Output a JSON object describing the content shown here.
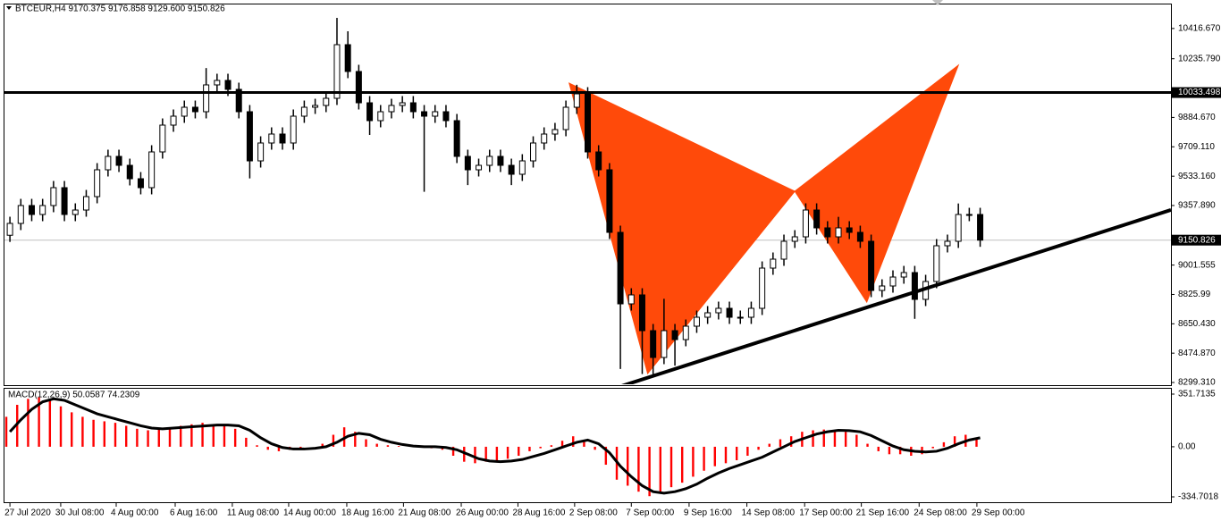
{
  "chart_data": [
    {
      "type": "candlestick",
      "title": "BTCEUR,H4  9170.375 9176.858 9129.600 9150.826",
      "xlim": [
        -0.5,
        106.5
      ],
      "ylim": [
        8288.7,
        10560.3
      ],
      "yticks": [
        {
          "value": 10416.67,
          "label": "10416.670"
        },
        {
          "value": 10235.79,
          "label": "10235.790"
        },
        {
          "value": 9884.67,
          "label": "9884.670"
        },
        {
          "value": 9709.11,
          "label": "9709.110"
        },
        {
          "value": 9533.16,
          "label": "9533.160"
        },
        {
          "value": 9357.89,
          "label": "9357.890"
        },
        9001.555,
        8825.99,
        {
          "value": 8650.43,
          "label": "8650.430"
        },
        {
          "value": 8474.87,
          "label": "8474.870"
        },
        {
          "value": 8299.31,
          "label": "8299.310"
        }
      ],
      "xticks": [
        {
          "value": 0,
          "label": "27 Jul 2020"
        },
        {
          "value": 4.66,
          "label": "30 Jul 08:00"
        },
        {
          "value": 9.75,
          "label": "4 Aug 00:00"
        },
        {
          "value": 15.16,
          "label": "6 Aug 16:00"
        },
        {
          "value": 20.4,
          "label": "11 Aug 08:00"
        },
        {
          "value": 25.57,
          "label": "14 Aug 00:00"
        },
        {
          "value": 30.9,
          "label": "18 Aug 16:00"
        },
        {
          "value": 36.1,
          "label": "21 Aug 08:00"
        },
        {
          "value": 41.4,
          "label": "26 Aug 00:00"
        },
        {
          "value": 46.6,
          "label": "28 Aug 16:00"
        },
        {
          "value": 51.8,
          "label": "2 Sep 08:00"
        },
        {
          "value": 57.0,
          "label": "7 Sep 00:00"
        },
        {
          "value": 62.3,
          "label": "9 Sep 16:00"
        },
        {
          "value": 67.6,
          "label": "14 Sep 08:00"
        },
        {
          "value": 72.9,
          "label": "17 Sep 00:00"
        },
        {
          "value": 78.1,
          "label": "21 Sep 16:00"
        },
        {
          "value": 83.4,
          "label": "24 Sep 08:00"
        },
        {
          "value": 88.7,
          "label": "29 Sep 00:00"
        }
      ],
      "candles": [
        [
          9180,
          9290.8,
          9140,
          9250.8
        ],
        [
          9250.8,
          9397.7,
          9210.8,
          9357.7
        ],
        [
          9357.7,
          9397.7,
          9264.2,
          9304.2
        ],
        [
          9304.2,
          9397.7,
          9264.2,
          9357.7
        ],
        [
          9357.7,
          9504.6,
          9317.7,
          9464.6
        ],
        [
          9464.6,
          9504.6,
          9264.2,
          9304.2
        ],
        [
          9304.2,
          9370.9,
          9264.2,
          9330.9
        ],
        [
          9330.9,
          9451.1,
          9290.9,
          9411.1
        ],
        [
          9411.1,
          9611.5,
          9371.1,
          9571.5
        ],
        [
          9571.5,
          9691.7,
          9531.5,
          9651.7
        ],
        [
          9651.7,
          9691.7,
          9558.2,
          9598.2
        ],
        [
          9598.2,
          9638.2,
          9478.0,
          9518.0
        ],
        [
          9518.0,
          9558.0,
          9424.6,
          9464.6
        ],
        [
          9464.6,
          9718.4,
          9424.6,
          9678.4
        ],
        [
          9678.4,
          9878.7,
          9638.4,
          9838.7
        ],
        [
          9838.7,
          9932.2,
          9798.7,
          9892.2
        ],
        [
          9892.2,
          9985.6,
          9852.2,
          9945.6
        ],
        [
          9945.6,
          9985.6,
          9878.9,
          9918.9
        ],
        [
          9918.9,
          10180,
          9878.9,
          10079.3
        ],
        [
          10079.3,
          10146,
          10039.3,
          10106.0
        ],
        [
          10106.0,
          10146,
          10012.6,
          10052.6
        ],
        [
          10052.6,
          10092.6,
          9878.9,
          9918.9
        ],
        [
          9918.9,
          9958.9,
          9520,
          9624.9
        ],
        [
          9624.9,
          9771.8,
          9584.9,
          9731.8
        ],
        [
          9731.8,
          9825.3,
          9691.8,
          9785.3
        ],
        [
          9785.3,
          9825.3,
          9691.8,
          9731.8
        ],
        [
          9731.8,
          9932.2,
          9691.8,
          9892.2
        ],
        [
          9892.2,
          9985.6,
          9852.2,
          9945.6
        ],
        [
          9945.6,
          9996.3,
          9905.6,
          9956.3
        ],
        [
          9956.3,
          10039.1,
          9916.3,
          9999.1
        ],
        [
          9999.1,
          10480,
          9959.1,
          10319.8
        ],
        [
          10319.8,
          10400,
          10119.5,
          10159.5
        ],
        [
          10159.5,
          10199.5,
          9932.3,
          9972.3
        ],
        [
          9972.3,
          10012.3,
          9780,
          9865.5
        ],
        [
          9865.5,
          9958.9,
          9825.5,
          9918.9
        ],
        [
          9918.9,
          9996.3,
          9878.9,
          9956.3
        ],
        [
          9956.3,
          10012.3,
          9916.3,
          9972.3
        ],
        [
          9972.3,
          10012.3,
          9878.9,
          9918.9
        ],
        [
          9918.9,
          9958.9,
          9440,
          9892.2
        ],
        [
          9892.2,
          9958.9,
          9852.2,
          9918.9
        ],
        [
          9918.9,
          9958.9,
          9825.5,
          9865.5
        ],
        [
          9865.5,
          9905.5,
          9611.7,
          9651.7
        ],
        [
          9651.7,
          9691.7,
          9480,
          9571.5
        ],
        [
          9571.5,
          9638.2,
          9531.5,
          9598.2
        ],
        [
          9598.2,
          9691.7,
          9558.2,
          9651.7
        ],
        [
          9651.7,
          9691.7,
          9558.2,
          9598.2
        ],
        [
          9598.2,
          9638.2,
          9480,
          9544.8
        ],
        [
          9544.8,
          9664.9,
          9504.8,
          9624.9
        ],
        [
          9624.9,
          9771.8,
          9584.9,
          9731.8
        ],
        [
          9731.8,
          9825.3,
          9691.8,
          9785.3
        ],
        [
          9785.3,
          9852.0,
          9745.3,
          9812.0
        ],
        [
          9812.0,
          9985.6,
          9772.0,
          9945.6
        ],
        [
          9945.6,
          10080,
          9905.6,
          10025.8
        ],
        [
          10025.8,
          10065.8,
          9638.4,
          9678.4
        ],
        [
          9678.4,
          9718.4,
          9531.5,
          9571.5
        ],
        [
          9571.5,
          9611.5,
          9157.3,
          9197.3
        ],
        [
          9197.3,
          9237.3,
          8380,
          8769.7
        ],
        [
          8769.7,
          8863.2,
          8729.7,
          8823.2
        ],
        [
          8823.2,
          8863.2,
          8350,
          8609.4
        ],
        [
          8609.4,
          8649.4,
          8330,
          8449.0
        ],
        [
          8449.0,
          8800,
          8409.0,
          8609.4
        ],
        [
          8609.4,
          8649.4,
          8400,
          8555.9
        ],
        [
          8555.9,
          8676.1,
          8515.9,
          8636.1
        ],
        [
          8636.1,
          8729.6,
          8596.1,
          8689.6
        ],
        [
          8689.6,
          8756.3,
          8649.6,
          8716.3
        ],
        [
          8716.3,
          8783.0,
          8676.3,
          8743.0
        ],
        [
          8743.0,
          8783.0,
          8649.6,
          8689.6
        ],
        [
          8689.6,
          8729.6,
          8649.6,
          8689.6
        ],
        [
          8689.6,
          8783.0,
          8649.6,
          8743.0
        ],
        [
          8743.0,
          9023.5,
          8703.0,
          8983.5
        ],
        [
          8983.5,
          9077.0,
          8943.5,
          9037.0
        ],
        [
          9037.0,
          9183.9,
          8997.0,
          9143.9
        ],
        [
          9143.9,
          9210.6,
          9103.9,
          9170.6
        ],
        [
          9170.6,
          9370.9,
          9130.6,
          9330.9
        ],
        [
          9330.9,
          9370.9,
          9184.1,
          9224.1
        ],
        [
          9224.1,
          9264.1,
          9130.6,
          9170.6
        ],
        [
          9170.6,
          9290,
          9130.6,
          9224.1
        ],
        [
          9224.1,
          9264.1,
          9157.3,
          9197.3
        ],
        [
          9197.3,
          9237.3,
          9103.9,
          9143.9
        ],
        [
          9143.9,
          9183.9,
          8809.9,
          8849.9
        ],
        [
          8849.9,
          8916.6,
          8809.9,
          8876.6
        ],
        [
          8876.6,
          8970.1,
          8836.6,
          8930.1
        ],
        [
          8930.1,
          8996.8,
          8890.1,
          8956.8
        ],
        [
          8956.8,
          8996.8,
          8680,
          8796.5
        ],
        [
          8796.5,
          8943.4,
          8756.5,
          8903.4
        ],
        [
          8903.4,
          9157.2,
          8863.4,
          9117.2
        ],
        [
          9117.2,
          9183.9,
          9077.2,
          9143.9
        ],
        [
          9143.9,
          9370,
          9103.9,
          9304.2
        ],
        [
          9304.2,
          9344.2,
          9264.2,
          9304.2
        ],
        [
          9304.2,
          9344.2,
          9110.8,
          9150.826
        ]
      ],
      "hline": {
        "value": 10033.498,
        "color": "#000000"
      },
      "last_price": {
        "value": 9150.826,
        "color": "#c0c0c0"
      },
      "trendline": {
        "color": "#000000",
        "x": [
          56.1,
          106.5
        ],
        "y": [
          8278,
          9331.4
        ]
      },
      "pattern": {
        "color": "#ff4a0a",
        "x": [
          51.3,
          58.5,
          72.0,
          78.6,
          87.0
        ],
        "y": [
          10090,
          8352.8,
          9443.2,
          8780.4,
          10196.8
        ]
      }
    },
    {
      "type": "macd",
      "title": "MACD(12,26,9) 50.0587 74.2309",
      "xlim": [
        -0.5,
        106.5
      ],
      "ylim": [
        -370.5,
        381.5
      ],
      "yticks": [
        351.7135,
        {
          "value": 0,
          "label": "0.00"
        },
        -334.7018
      ],
      "histogram": {
        "color": "#ff0000",
        "values": [
          200,
          280,
          320,
          330,
          310,
          270,
          230,
          200,
          180,
          170,
          160,
          140,
          120,
          110,
          120,
          130,
          140,
          150,
          160,
          150,
          140,
          120,
          60,
          10,
          -20,
          -30,
          -20,
          -10,
          0,
          20,
          80,
          130,
          100,
          50,
          20,
          10,
          5,
          0,
          -5,
          -10,
          -20,
          -60,
          -100,
          -110,
          -100,
          -90,
          -80,
          -60,
          -30,
          -10,
          10,
          40,
          70,
          40,
          -20,
          -120,
          -220,
          -260,
          -300,
          -330,
          -300,
          -270,
          -240,
          -200,
          -160,
          -130,
          -110,
          -90,
          -60,
          -20,
          20,
          50,
          70,
          100,
          110,
          115,
          110,
          100,
          80,
          20,
          -30,
          -50,
          -50,
          -60,
          -50,
          -10,
          30,
          70,
          80,
          60
        ]
      },
      "signal": {
        "color": "#000000",
        "values": [
          100,
          180,
          250,
          300,
          320,
          310,
          280,
          250,
          220,
          200,
          180,
          160,
          140,
          125,
          120,
          125,
          130,
          135,
          140,
          145,
          145,
          140,
          110,
          60,
          20,
          -5,
          -15,
          -15,
          -10,
          0,
          30,
          70,
          90,
          80,
          50,
          30,
          15,
          5,
          0,
          0,
          -5,
          -20,
          -50,
          -80,
          -95,
          -100,
          -95,
          -85,
          -65,
          -45,
          -20,
          5,
          30,
          45,
          20,
          -40,
          -130,
          -200,
          -260,
          -300,
          -310,
          -300,
          -280,
          -250,
          -210,
          -175,
          -145,
          -120,
          -95,
          -70,
          -35,
          0,
          35,
          60,
          85,
          100,
          110,
          108,
          100,
          75,
          40,
          5,
          -20,
          -30,
          -35,
          -30,
          -10,
          20,
          45,
          60
        ]
      }
    }
  ]
}
